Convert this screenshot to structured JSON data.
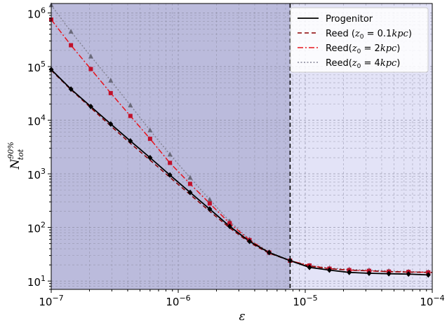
{
  "chart_data": {
    "type": "line",
    "xscale": "log",
    "yscale": "log",
    "xlim": [
      1e-07,
      0.0001
    ],
    "ylim": [
      7,
      1500000
    ],
    "xlabel": "ε",
    "ylabel": {
      "main": "N",
      "sup": "90%",
      "sub": "tot"
    },
    "x_ticks": [
      {
        "value": 1e-07,
        "base": "10",
        "exp": "−7"
      },
      {
        "value": 1e-06,
        "base": "10",
        "exp": "−6"
      },
      {
        "value": 1e-05,
        "base": "10",
        "exp": "−5"
      },
      {
        "value": 0.0001,
        "base": "10",
        "exp": "−4"
      }
    ],
    "y_ticks": [
      {
        "value": 10,
        "base": "10",
        "exp": "1"
      },
      {
        "value": 100,
        "base": "10",
        "exp": "2"
      },
      {
        "value": 1000,
        "base": "10",
        "exp": "3"
      },
      {
        "value": 10000,
        "base": "10",
        "exp": "4"
      },
      {
        "value": 100000,
        "base": "10",
        "exp": "5"
      },
      {
        "value": 1000000,
        "base": "10",
        "exp": "6"
      }
    ],
    "grid": true,
    "shaded_region": {
      "x_from": 1e-07,
      "x_to": 7.6e-06,
      "color": "#bbbbdc"
    },
    "unshaded_color": "#e3e3f7",
    "vline": {
      "x": 7.6e-06,
      "style": "dashed",
      "color": "#000000"
    },
    "legend_position": "top-right",
    "series": [
      {
        "name": "Progenitor",
        "color": "#000000",
        "linestyle": "solid",
        "marker": "diamond",
        "x": [
          1e-07,
          1.43e-07,
          2.05e-07,
          2.94e-07,
          4.2e-07,
          6e-07,
          8.6e-07,
          1.24e-06,
          1.77e-06,
          2.54e-06,
          3.64e-06,
          5.2e-06,
          7.6e-06,
          1.08e-05,
          1.55e-05,
          2.22e-05,
          3.18e-05,
          4.55e-05,
          6.5e-05,
          9.3e-05
        ],
        "y": [
          88000,
          38000,
          18000,
          8500,
          4100,
          2000,
          950,
          450,
          220,
          105,
          55,
          34,
          24,
          18,
          16,
          14.5,
          14,
          13.7,
          13.5,
          13
        ]
      },
      {
        "name": "Reed ($z_0 = 0.1kpc$)",
        "legend_main": "Reed (",
        "legend_var": "z",
        "legend_sub": "0",
        "legend_rest": " = 0.1",
        "legend_unit": "kpc",
        "legend_close": ")",
        "color": "#8b0000",
        "linestyle": "dashed",
        "marker": "none",
        "x": [
          1e-07,
          1.43e-07,
          2.05e-07,
          2.94e-07,
          4.2e-07,
          6e-07,
          8.6e-07,
          1.24e-06,
          1.77e-06,
          2.54e-06,
          3.64e-06,
          5.2e-06,
          7.6e-06,
          1.08e-05,
          1.55e-05,
          2.22e-05,
          3.18e-05,
          4.55e-05,
          6.5e-05,
          0.0001
        ],
        "y": [
          85000,
          37000,
          17000,
          7800,
          3700,
          1800,
          860,
          410,
          200,
          98,
          52,
          33,
          24,
          19,
          17,
          16,
          15.5,
          15,
          14.7,
          14.5
        ]
      },
      {
        "name": "Reed($z_0 = 2kpc$)",
        "legend_main": "Reed(",
        "legend_var": "z",
        "legend_sub": "0",
        "legend_rest": " = 2",
        "legend_unit": "kpc",
        "legend_close": ")",
        "color": "#e8141c",
        "linestyle": "dashdot",
        "marker": "square",
        "marker_color": "#c0102a",
        "x": [
          1e-07,
          1.43e-07,
          2.05e-07,
          2.94e-07,
          4.2e-07,
          6e-07,
          8.6e-07,
          1.24e-06,
          1.77e-06,
          2.54e-06,
          3.64e-06,
          5.2e-06,
          7.6e-06,
          1.08e-05,
          1.55e-05,
          2.22e-05,
          3.18e-05,
          4.55e-05,
          6.5e-05,
          9.3e-05
        ],
        "y": [
          750000,
          250000,
          90000,
          32000,
          12000,
          4500,
          1600,
          650,
          280,
          120,
          58,
          34,
          24,
          19.5,
          17,
          16,
          15.5,
          15,
          14.8,
          14.5
        ]
      },
      {
        "name": "Reed($z_0 = 4kpc$)",
        "legend_main": "Reed(",
        "legend_var": "z",
        "legend_sub": "0",
        "legend_rest": " = 4",
        "legend_unit": "kpc",
        "legend_close": ")",
        "color": "#858595",
        "linestyle": "dotted",
        "marker": "triangle",
        "marker_color": "#6a6a7a",
        "x": [
          1e-07,
          1.43e-07,
          2.05e-07,
          2.94e-07,
          4.2e-07,
          6e-07,
          8.6e-07,
          1.24e-06,
          1.77e-06,
          2.54e-06,
          3.64e-06,
          5.2e-06,
          7.6e-06,
          1.08e-05,
          1.55e-05,
          2.22e-05,
          3.18e-05,
          4.55e-05,
          6.5e-05,
          9.3e-05
        ],
        "y": [
          1400000,
          450000,
          155000,
          55000,
          19000,
          6500,
          2300,
          850,
          330,
          130,
          60,
          35,
          24,
          19.5,
          17.5,
          16.5,
          16,
          15.5,
          15,
          14.8
        ]
      }
    ]
  }
}
